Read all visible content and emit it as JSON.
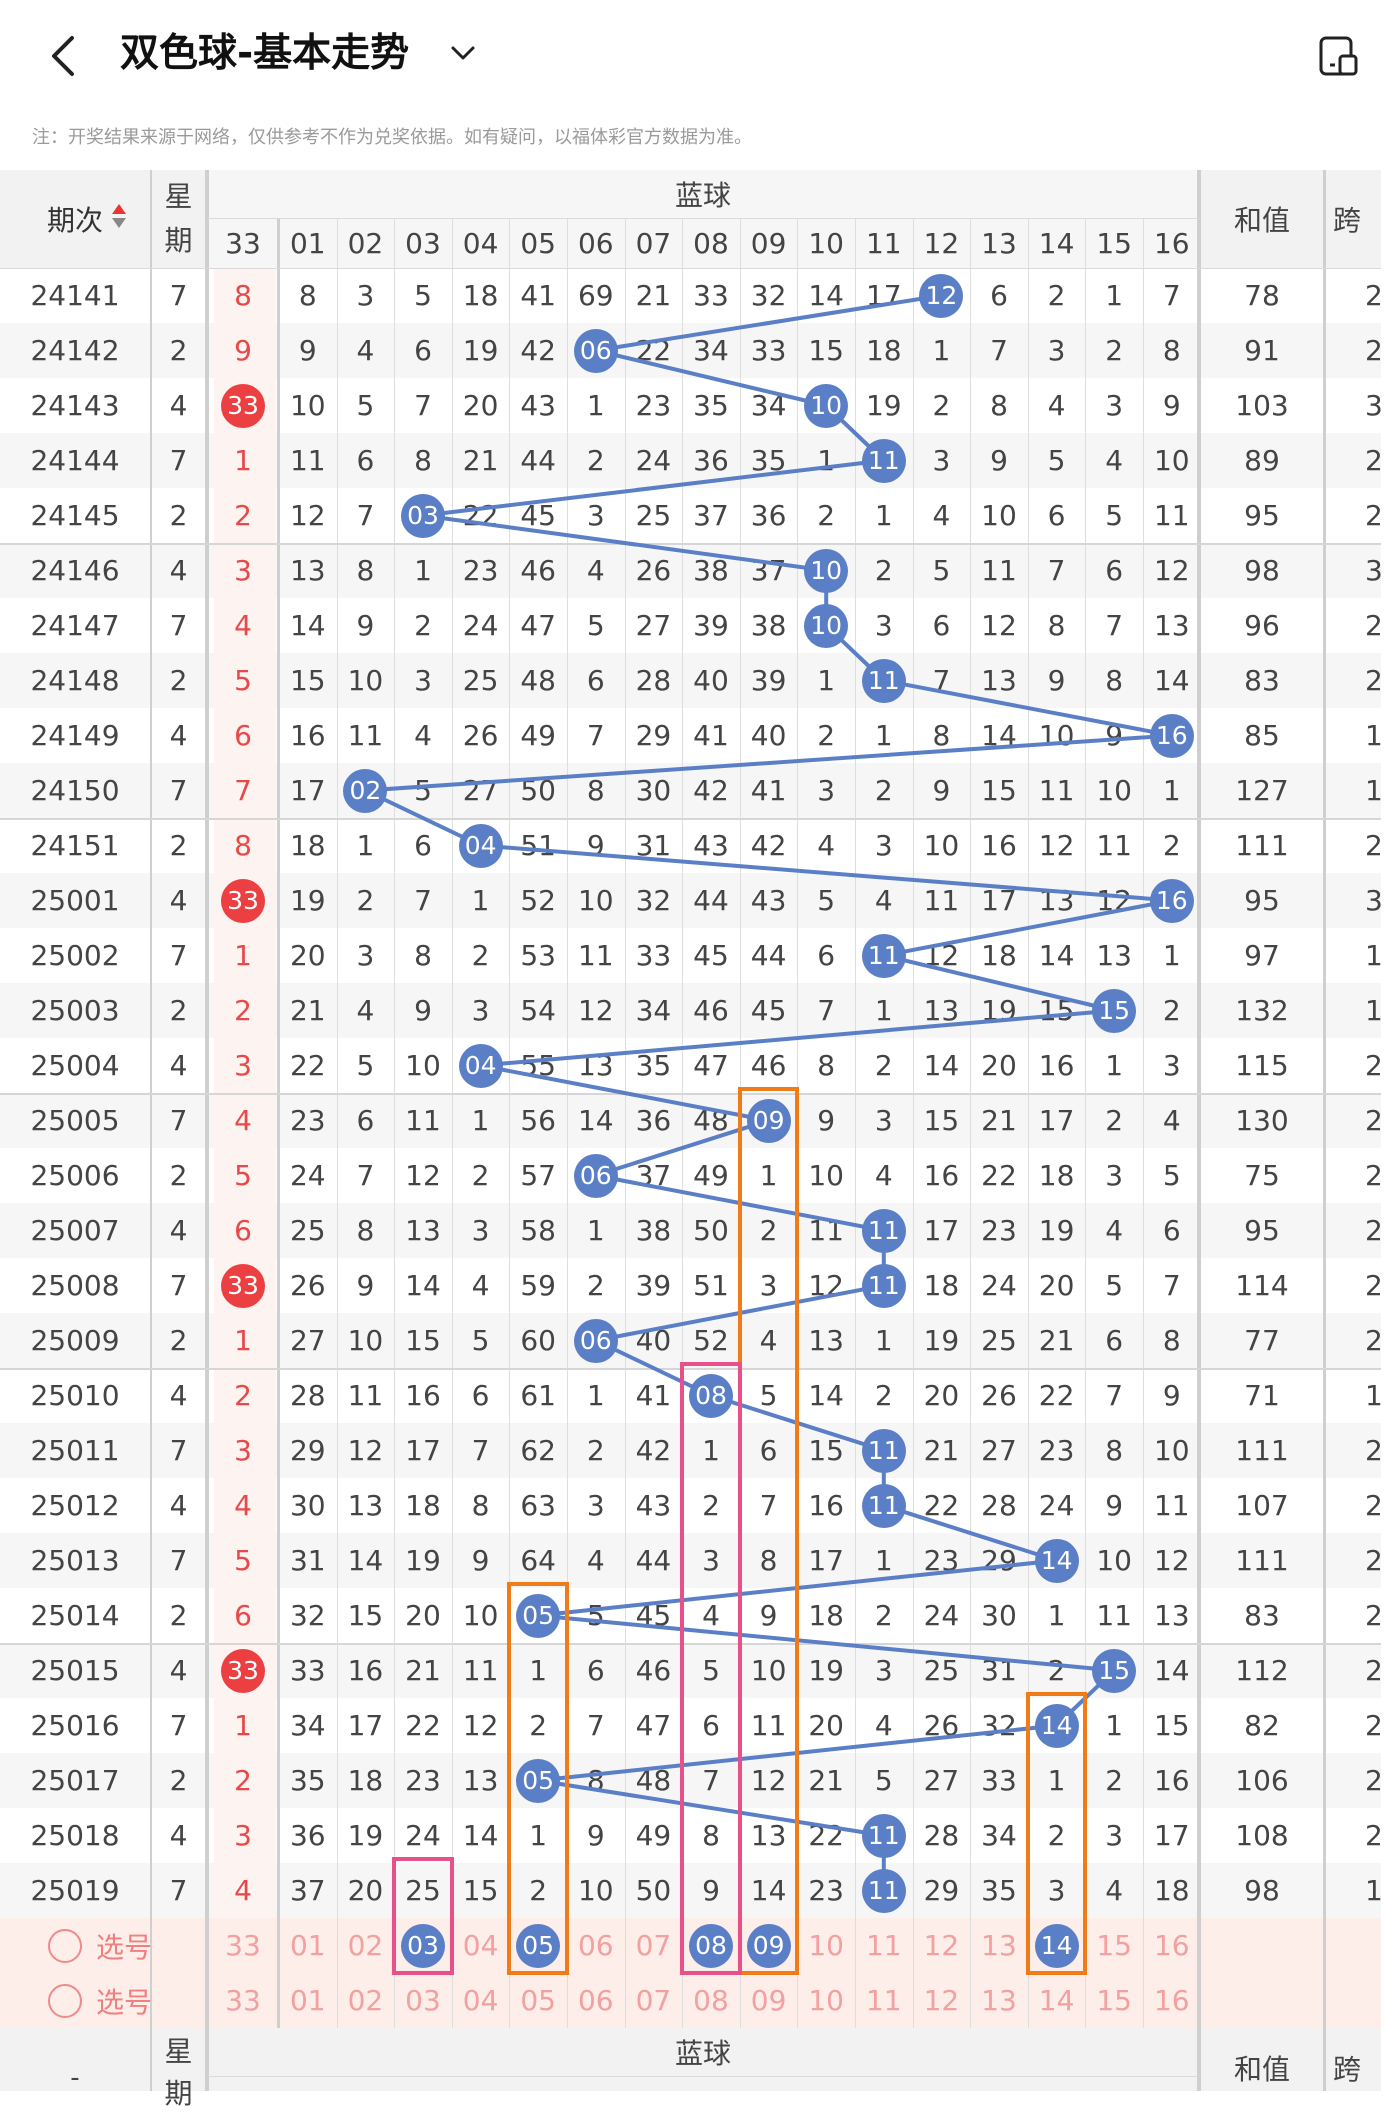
{
  "header": {
    "title": "双色球-基本走势",
    "back_icon": "chevron-left-icon",
    "dropdown_icon": "chevron-down-icon",
    "layout_icon": "layout-toggle-icon"
  },
  "note": "注：开奖结果来源于网络，仅供参考不作为兑奖依据。如有疑问，以福体彩官方数据为准。",
  "columns": {
    "issue": "期次",
    "weekday": "星期",
    "prev_col": "33",
    "blue_group": "蓝球",
    "blue_numbers": [
      "01",
      "02",
      "03",
      "04",
      "05",
      "06",
      "07",
      "08",
      "09",
      "10",
      "11",
      "12",
      "13",
      "14",
      "15",
      "16"
    ],
    "sum": "和值",
    "span": "跨"
  },
  "rows": [
    {
      "issue": "24141",
      "wd": "7",
      "x": "8",
      "vals": [
        "8",
        "3",
        "5",
        "18",
        "41",
        "69",
        "21",
        "33",
        "32",
        "14",
        "17",
        "12",
        "6",
        "2",
        "1",
        "7"
      ],
      "hit": 12,
      "sum": "78",
      "span": "2"
    },
    {
      "issue": "24142",
      "wd": "2",
      "x": "9",
      "vals": [
        "9",
        "4",
        "6",
        "19",
        "42",
        "06",
        "22",
        "34",
        "33",
        "15",
        "18",
        "1",
        "7",
        "3",
        "2",
        "8"
      ],
      "hit": 6,
      "sum": "91",
      "span": "2"
    },
    {
      "issue": "24143",
      "wd": "4",
      "x": "33",
      "vals": [
        "10",
        "5",
        "7",
        "20",
        "43",
        "1",
        "23",
        "35",
        "34",
        "10",
        "19",
        "2",
        "8",
        "4",
        "3",
        "9"
      ],
      "hit": 10,
      "sum": "103",
      "span": "3"
    },
    {
      "issue": "24144",
      "wd": "7",
      "x": "1",
      "vals": [
        "11",
        "6",
        "8",
        "21",
        "44",
        "2",
        "24",
        "36",
        "35",
        "1",
        "11",
        "3",
        "9",
        "5",
        "4",
        "10"
      ],
      "hit": 11,
      "sum": "89",
      "span": "2"
    },
    {
      "issue": "24145",
      "wd": "2",
      "x": "2",
      "vals": [
        "12",
        "7",
        "03",
        "22",
        "45",
        "3",
        "25",
        "37",
        "36",
        "2",
        "1",
        "4",
        "10",
        "6",
        "5",
        "11"
      ],
      "hit": 3,
      "sum": "95",
      "span": "2"
    },
    {
      "issue": "24146",
      "wd": "4",
      "x": "3",
      "vals": [
        "13",
        "8",
        "1",
        "23",
        "46",
        "4",
        "26",
        "38",
        "37",
        "10",
        "2",
        "5",
        "11",
        "7",
        "6",
        "12"
      ],
      "hit": 10,
      "sum": "98",
      "span": "3"
    },
    {
      "issue": "24147",
      "wd": "7",
      "x": "4",
      "vals": [
        "14",
        "9",
        "2",
        "24",
        "47",
        "5",
        "27",
        "39",
        "38",
        "10",
        "3",
        "6",
        "12",
        "8",
        "7",
        "13"
      ],
      "hit": 10,
      "sum": "96",
      "span": "2"
    },
    {
      "issue": "24148",
      "wd": "2",
      "x": "5",
      "vals": [
        "15",
        "10",
        "3",
        "25",
        "48",
        "6",
        "28",
        "40",
        "39",
        "1",
        "11",
        "7",
        "13",
        "9",
        "8",
        "14"
      ],
      "hit": 11,
      "sum": "83",
      "span": "2"
    },
    {
      "issue": "24149",
      "wd": "4",
      "x": "6",
      "vals": [
        "16",
        "11",
        "4",
        "26",
        "49",
        "7",
        "29",
        "41",
        "40",
        "2",
        "1",
        "8",
        "14",
        "10",
        "9",
        "16"
      ],
      "hit": 16,
      "sum": "85",
      "span": "1"
    },
    {
      "issue": "24150",
      "wd": "7",
      "x": "7",
      "vals": [
        "17",
        "02",
        "5",
        "27",
        "50",
        "8",
        "30",
        "42",
        "41",
        "3",
        "2",
        "9",
        "15",
        "11",
        "10",
        "1"
      ],
      "hit": 2,
      "sum": "127",
      "span": "1"
    },
    {
      "issue": "24151",
      "wd": "2",
      "x": "8",
      "vals": [
        "18",
        "1",
        "6",
        "04",
        "51",
        "9",
        "31",
        "43",
        "42",
        "4",
        "3",
        "10",
        "16",
        "12",
        "11",
        "2"
      ],
      "hit": 4,
      "sum": "111",
      "span": "2"
    },
    {
      "issue": "25001",
      "wd": "4",
      "x": "33",
      "vals": [
        "19",
        "2",
        "7",
        "1",
        "52",
        "10",
        "32",
        "44",
        "43",
        "5",
        "4",
        "11",
        "17",
        "13",
        "12",
        "16"
      ],
      "hit": 16,
      "sum": "95",
      "span": "3"
    },
    {
      "issue": "25002",
      "wd": "7",
      "x": "1",
      "vals": [
        "20",
        "3",
        "8",
        "2",
        "53",
        "11",
        "33",
        "45",
        "44",
        "6",
        "11",
        "12",
        "18",
        "14",
        "13",
        "1"
      ],
      "hit": 11,
      "sum": "97",
      "span": "1"
    },
    {
      "issue": "25003",
      "wd": "2",
      "x": "2",
      "vals": [
        "21",
        "4",
        "9",
        "3",
        "54",
        "12",
        "34",
        "46",
        "45",
        "7",
        "1",
        "13",
        "19",
        "15",
        "15",
        "2"
      ],
      "hit": 15,
      "sum": "132",
      "span": "1"
    },
    {
      "issue": "25004",
      "wd": "4",
      "x": "3",
      "vals": [
        "22",
        "5",
        "10",
        "04",
        "55",
        "13",
        "35",
        "47",
        "46",
        "8",
        "2",
        "14",
        "20",
        "16",
        "1",
        "3"
      ],
      "hit": 4,
      "sum": "115",
      "span": "2"
    },
    {
      "issue": "25005",
      "wd": "7",
      "x": "4",
      "vals": [
        "23",
        "6",
        "11",
        "1",
        "56",
        "14",
        "36",
        "48",
        "09",
        "9",
        "3",
        "15",
        "21",
        "17",
        "2",
        "4"
      ],
      "hit": 9,
      "sum": "130",
      "span": "2"
    },
    {
      "issue": "25006",
      "wd": "2",
      "x": "5",
      "vals": [
        "24",
        "7",
        "12",
        "2",
        "57",
        "06",
        "37",
        "49",
        "1",
        "10",
        "4",
        "16",
        "22",
        "18",
        "3",
        "5"
      ],
      "hit": 6,
      "sum": "75",
      "span": "2"
    },
    {
      "issue": "25007",
      "wd": "4",
      "x": "6",
      "vals": [
        "25",
        "8",
        "13",
        "3",
        "58",
        "1",
        "38",
        "50",
        "2",
        "11",
        "11",
        "17",
        "23",
        "19",
        "4",
        "6"
      ],
      "hit": 11,
      "sum": "95",
      "span": "2"
    },
    {
      "issue": "25008",
      "wd": "7",
      "x": "33",
      "vals": [
        "26",
        "9",
        "14",
        "4",
        "59",
        "2",
        "39",
        "51",
        "3",
        "12",
        "11",
        "18",
        "24",
        "20",
        "5",
        "7"
      ],
      "hit": 11,
      "sum": "114",
      "span": "2"
    },
    {
      "issue": "25009",
      "wd": "2",
      "x": "1",
      "vals": [
        "27",
        "10",
        "15",
        "5",
        "60",
        "06",
        "40",
        "52",
        "4",
        "13",
        "1",
        "19",
        "25",
        "21",
        "6",
        "8"
      ],
      "hit": 6,
      "sum": "77",
      "span": "2"
    },
    {
      "issue": "25010",
      "wd": "4",
      "x": "2",
      "vals": [
        "28",
        "11",
        "16",
        "6",
        "61",
        "1",
        "41",
        "08",
        "5",
        "14",
        "2",
        "20",
        "26",
        "22",
        "7",
        "9"
      ],
      "hit": 8,
      "sum": "71",
      "span": "1"
    },
    {
      "issue": "25011",
      "wd": "7",
      "x": "3",
      "vals": [
        "29",
        "12",
        "17",
        "7",
        "62",
        "2",
        "42",
        "1",
        "6",
        "15",
        "11",
        "21",
        "27",
        "23",
        "8",
        "10"
      ],
      "hit": 11,
      "sum": "111",
      "span": "2"
    },
    {
      "issue": "25012",
      "wd": "4",
      "x": "4",
      "vals": [
        "30",
        "13",
        "18",
        "8",
        "63",
        "3",
        "43",
        "2",
        "7",
        "16",
        "11",
        "22",
        "28",
        "24",
        "9",
        "11"
      ],
      "hit": 11,
      "sum": "107",
      "span": "2"
    },
    {
      "issue": "25013",
      "wd": "7",
      "x": "5",
      "vals": [
        "31",
        "14",
        "19",
        "9",
        "64",
        "4",
        "44",
        "3",
        "8",
        "17",
        "1",
        "23",
        "29",
        "14",
        "10",
        "12"
      ],
      "hit": 14,
      "sum": "111",
      "span": "2"
    },
    {
      "issue": "25014",
      "wd": "2",
      "x": "6",
      "vals": [
        "32",
        "15",
        "20",
        "10",
        "05",
        "5",
        "45",
        "4",
        "9",
        "18",
        "2",
        "24",
        "30",
        "1",
        "11",
        "13"
      ],
      "hit": 5,
      "sum": "83",
      "span": "2"
    },
    {
      "issue": "25015",
      "wd": "4",
      "x": "33",
      "vals": [
        "33",
        "16",
        "21",
        "11",
        "1",
        "6",
        "46",
        "5",
        "10",
        "19",
        "3",
        "25",
        "31",
        "2",
        "15",
        "14"
      ],
      "hit": 15,
      "sum": "112",
      "span": "2"
    },
    {
      "issue": "25016",
      "wd": "7",
      "x": "1",
      "vals": [
        "34",
        "17",
        "22",
        "12",
        "2",
        "7",
        "47",
        "6",
        "11",
        "20",
        "4",
        "26",
        "32",
        "14",
        "1",
        "15"
      ],
      "hit": 14,
      "sum": "82",
      "span": "2"
    },
    {
      "issue": "25017",
      "wd": "2",
      "x": "2",
      "vals": [
        "35",
        "18",
        "23",
        "13",
        "05",
        "8",
        "48",
        "7",
        "12",
        "21",
        "5",
        "27",
        "33",
        "1",
        "2",
        "16"
      ],
      "hit": 5,
      "sum": "106",
      "span": "2"
    },
    {
      "issue": "25018",
      "wd": "4",
      "x": "3",
      "vals": [
        "36",
        "19",
        "24",
        "14",
        "1",
        "9",
        "49",
        "8",
        "13",
        "22",
        "11",
        "28",
        "34",
        "2",
        "3",
        "17"
      ],
      "hit": 11,
      "sum": "108",
      "span": "2"
    },
    {
      "issue": "25019",
      "wd": "7",
      "x": "4",
      "vals": [
        "37",
        "20",
        "25",
        "15",
        "2",
        "10",
        "50",
        "9",
        "14",
        "23",
        "11",
        "29",
        "35",
        "3",
        "4",
        "18"
      ],
      "hit": 11,
      "sum": "98",
      "span": "1"
    }
  ],
  "select_rows": [
    {
      "label": "选号",
      "x": "33",
      "nums": [
        "01",
        "02",
        "03",
        "04",
        "05",
        "06",
        "07",
        "08",
        "09",
        "10",
        "11",
        "12",
        "13",
        "14",
        "15",
        "16"
      ],
      "picked": [
        3,
        5,
        8,
        9,
        14
      ]
    },
    {
      "label": "选号",
      "x": "33",
      "nums": [
        "01",
        "02",
        "03",
        "04",
        "05",
        "06",
        "07",
        "08",
        "09",
        "10",
        "11",
        "12",
        "13",
        "14",
        "15",
        "16"
      ],
      "picked": []
    }
  ],
  "footer": {
    "issue": "-",
    "weekday_top": "星",
    "weekday_bottom": "期",
    "blue_group": "蓝球",
    "sum": "和值",
    "span": "跨"
  },
  "colors": {
    "ball_blue": "#5a7fc6",
    "ball_red": "#ec3f42",
    "box_orange": "#f07b19",
    "box_pink": "#e8508a",
    "select_bg": "#fdeeea"
  }
}
